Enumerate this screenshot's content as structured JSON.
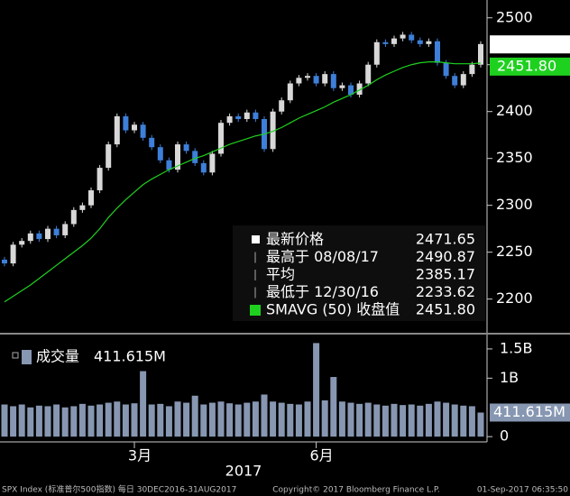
{
  "chart_data": [
    {
      "type": "candlestick",
      "categories": [
        null,
        null,
        null,
        null,
        null,
        null,
        null,
        null,
        null,
        null,
        null,
        null,
        null,
        null,
        null,
        null,
        null,
        null,
        null,
        null,
        null,
        null,
        null,
        null,
        null,
        null,
        null,
        null,
        null,
        null,
        null,
        null,
        null,
        null,
        null,
        null,
        null,
        null,
        null,
        null,
        null,
        null,
        null,
        null,
        null,
        null,
        null,
        null,
        null,
        null,
        null,
        null,
        null,
        null,
        null,
        null
      ],
      "open": [
        2242,
        2238,
        2258,
        2262,
        2270,
        2264,
        2275,
        2268,
        2280,
        2295,
        2300,
        2316,
        2340,
        2365,
        2395,
        2380,
        2386,
        2372,
        2362,
        2348,
        2338,
        2365,
        2358,
        2345,
        2335,
        2355,
        2388,
        2395,
        2392,
        2399,
        2392,
        2360,
        2400,
        2412,
        2430,
        2436,
        2438,
        2430,
        2440,
        2425,
        2428,
        2418,
        2430,
        2450,
        2474,
        2472,
        2478,
        2482,
        2476,
        2472,
        2475,
        2452,
        2438,
        2428,
        2440,
        2450
      ],
      "high": [
        2245,
        2261,
        2265,
        2273,
        2273,
        2278,
        2278,
        2283,
        2298,
        2303,
        2319,
        2343,
        2368,
        2398,
        2398,
        2389,
        2389,
        2375,
        2365,
        2351,
        2368,
        2368,
        2361,
        2348,
        2358,
        2391,
        2398,
        2398,
        2402,
        2402,
        2395,
        2403,
        2415,
        2433,
        2439,
        2441,
        2441,
        2443,
        2443,
        2431,
        2431,
        2433,
        2453,
        2477,
        2477,
        2481,
        2485,
        2485,
        2479,
        2478,
        2478,
        2455,
        2441,
        2443,
        2453,
        2475
      ],
      "low": [
        2235,
        2235,
        2255,
        2259,
        2261,
        2261,
        2265,
        2265,
        2277,
        2292,
        2297,
        2313,
        2337,
        2362,
        2377,
        2377,
        2369,
        2359,
        2345,
        2335,
        2335,
        2355,
        2342,
        2332,
        2332,
        2352,
        2385,
        2389,
        2389,
        2389,
        2357,
        2357,
        2397,
        2409,
        2427,
        2433,
        2427,
        2427,
        2422,
        2422,
        2415,
        2415,
        2427,
        2447,
        2469,
        2469,
        2475,
        2473,
        2469,
        2469,
        2449,
        2435,
        2425,
        2425,
        2437,
        2447
      ],
      "close": [
        2238,
        2258,
        2262,
        2270,
        2264,
        2275,
        2268,
        2280,
        2295,
        2300,
        2316,
        2340,
        2365,
        2395,
        2380,
        2386,
        2372,
        2362,
        2348,
        2338,
        2365,
        2358,
        2345,
        2335,
        2355,
        2388,
        2395,
        2392,
        2399,
        2392,
        2360,
        2400,
        2412,
        2430,
        2436,
        2438,
        2430,
        2440,
        2425,
        2428,
        2418,
        2430,
        2450,
        2474,
        2472,
        2478,
        2482,
        2476,
        2472,
        2475,
        2452,
        2438,
        2428,
        2440,
        2450,
        2472
      ],
      "up_color": "#d8d8d8",
      "down_color": "#3d7fd9",
      "sma": {
        "color": "#1fd11f",
        "values": [
          2197,
          2203,
          2209,
          2215,
          2222,
          2229,
          2236,
          2243,
          2250,
          2257,
          2265,
          2275,
          2287,
          2297,
          2306,
          2314,
          2322,
          2328,
          2333,
          2338,
          2342,
          2346,
          2350,
          2353,
          2357,
          2361,
          2365,
          2368,
          2371,
          2374,
          2376,
          2379,
          2383,
          2388,
          2393,
          2397,
          2401,
          2405,
          2410,
          2414,
          2418,
          2423,
          2428,
          2434,
          2439,
          2443,
          2447,
          2450,
          2452,
          2453,
          2453,
          2452,
          2451,
          2451,
          2451,
          2451.8
        ]
      },
      "ylim": [
        2165,
        2519
      ],
      "yticks": [
        2200,
        2250,
        2300,
        2350,
        2400,
        2450,
        2500
      ],
      "xticks": [
        {
          "value": 15,
          "label": "3月"
        },
        {
          "value": 36,
          "label": "6月"
        }
      ],
      "xlabel": "2017",
      "legend": [
        {
          "name": "最新价格",
          "value": 2471.65
        },
        {
          "name": "最高于 08/08/17",
          "value": 2490.87
        },
        {
          "name": "平均",
          "value": 2385.17
        },
        {
          "name": "最低于 12/30/16",
          "value": 2233.62
        },
        {
          "name": "SMAVG (50) 收盘值",
          "value": 2451.8,
          "value_label": "2451.80"
        }
      ]
    },
    {
      "type": "bar",
      "title": "成交量",
      "color": "#8797b2",
      "values": [
        0.55,
        0.52,
        0.55,
        0.5,
        0.53,
        0.52,
        0.55,
        0.5,
        0.52,
        0.56,
        0.53,
        0.55,
        0.58,
        0.6,
        0.55,
        0.57,
        1.12,
        0.55,
        0.56,
        0.52,
        0.6,
        0.58,
        0.7,
        0.55,
        0.58,
        0.6,
        0.57,
        0.55,
        0.58,
        0.6,
        0.72,
        0.6,
        0.58,
        0.56,
        0.55,
        0.6,
        1.6,
        0.62,
        1.02,
        0.6,
        0.58,
        0.56,
        0.58,
        0.55,
        0.53,
        0.56,
        0.54,
        0.55,
        0.53,
        0.56,
        0.6,
        0.58,
        0.55,
        0.53,
        0.52,
        0.411615
      ],
      "last": {
        "value": 0.411615,
        "label": "411.615M"
      },
      "ylim": [
        -0.09,
        1.73
      ],
      "yticks": [
        0,
        {
          "value": 1,
          "label": "1B"
        },
        {
          "value": 1.5,
          "label": "1.5B"
        }
      ]
    }
  ],
  "footer": {
    "left": "SPX Index (标准普尔500指数) 每日 30DEC2016-31AUG2017",
    "center": "Copyright© 2017 Bloomberg Finance L.P.",
    "right": "01-Sep-2017 06:35:50"
  }
}
